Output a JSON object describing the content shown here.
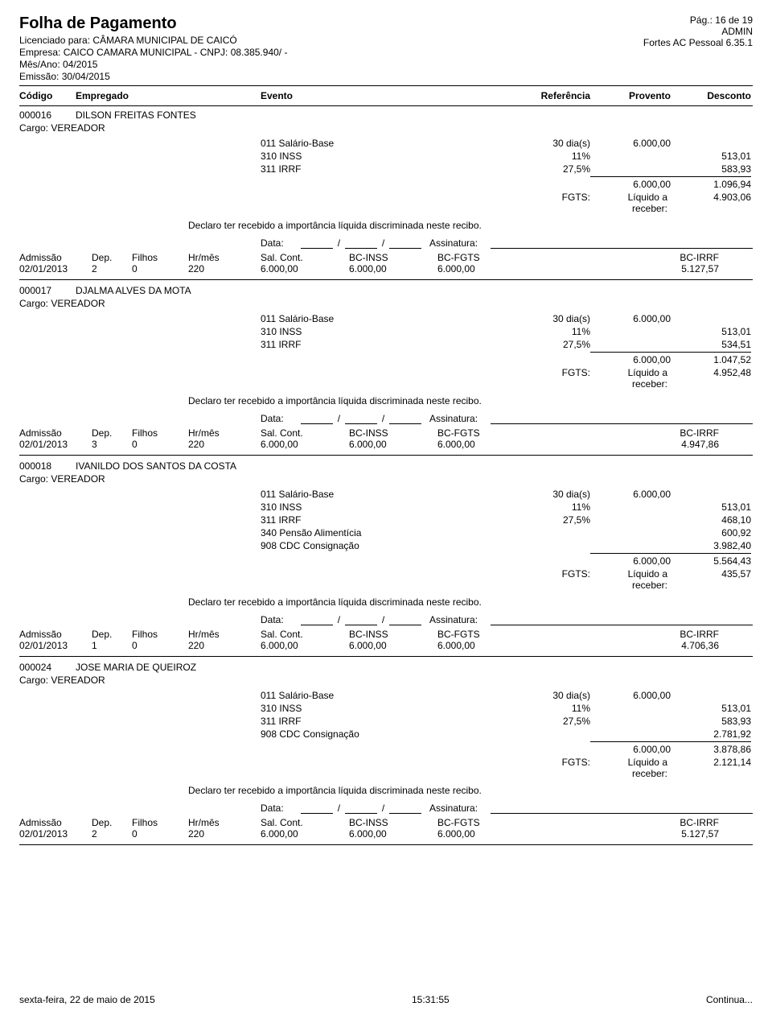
{
  "page": {
    "title": "Folha de Pagamento",
    "pag": "Pág.: 16 de 19",
    "licenciado_label": "Licenciado para:",
    "licenciado": "CÂMARA MUNICIPAL DE CAICÓ",
    "admin": "ADMIN",
    "empresa_label": "Empresa:",
    "empresa": "CAICO CAMARA MUNICIPAL - CNPJ: 08.385.940/    -",
    "software": "Fortes AC Pessoal 6.35.1",
    "mesano_label": "Mês/Ano:",
    "mesano": "04/2015",
    "emissao_label": "Emissão:",
    "emissao": "30/04/2015"
  },
  "cols": {
    "codigo": "Código",
    "empregado": "Empregado",
    "evento": "Evento",
    "referencia": "Referência",
    "provento": "Provento",
    "desconto": "Desconto"
  },
  "labels": {
    "cargo": "Cargo:",
    "fgts": "FGTS:",
    "liquido": "Líquido a receber:",
    "declaro": "Declaro ter recebido a importância líquida discriminada neste recibo.",
    "data": "Data:",
    "assinatura": "Assinatura:",
    "admissao": "Admissão",
    "dep": "Dep.",
    "filhos": "Filhos",
    "hrmes": "Hr/mês",
    "salcont": "Sal. Cont.",
    "bcinss": "BC-INSS",
    "bcfgts": "BC-FGTS",
    "bcirrf": "BC-IRRF"
  },
  "employees": [
    {
      "code": "000016",
      "name": "DILSON FREITAS FONTES",
      "cargo": "VEREADOR",
      "events": [
        {
          "code": "011",
          "name": "Salário-Base",
          "ref": "30 dia(s)",
          "prov": "6.000,00",
          "desc": ""
        },
        {
          "code": "310",
          "name": "INSS",
          "ref": "11%",
          "prov": "",
          "desc": "513,01"
        },
        {
          "code": "311",
          "name": "IRRF",
          "ref": "27,5%",
          "prov": "",
          "desc": "583,93"
        }
      ],
      "total_prov": "6.000,00",
      "total_desc": "1.096,94",
      "fgts": "",
      "liquido": "4.903,06",
      "footer": {
        "admissao": "02/01/2013",
        "dep": "2",
        "filhos": "0",
        "hrmes": "220",
        "salcont": "6.000,00",
        "bcinss": "6.000,00",
        "bcfgts": "6.000,00",
        "bcirrf": "5.127,57"
      }
    },
    {
      "code": "000017",
      "name": "DJALMA ALVES DA MOTA",
      "cargo": "VEREADOR",
      "events": [
        {
          "code": "011",
          "name": "Salário-Base",
          "ref": "30 dia(s)",
          "prov": "6.000,00",
          "desc": ""
        },
        {
          "code": "310",
          "name": "INSS",
          "ref": "11%",
          "prov": "",
          "desc": "513,01"
        },
        {
          "code": "311",
          "name": "IRRF",
          "ref": "27,5%",
          "prov": "",
          "desc": "534,51"
        }
      ],
      "total_prov": "6.000,00",
      "total_desc": "1.047,52",
      "fgts": "",
      "liquido": "4.952,48",
      "footer": {
        "admissao": "02/01/2013",
        "dep": "3",
        "filhos": "0",
        "hrmes": "220",
        "salcont": "6.000,00",
        "bcinss": "6.000,00",
        "bcfgts": "6.000,00",
        "bcirrf": "4.947,86"
      }
    },
    {
      "code": "000018",
      "name": "IVANILDO DOS SANTOS DA COSTA",
      "cargo": "VEREADOR",
      "events": [
        {
          "code": "011",
          "name": "Salário-Base",
          "ref": "30 dia(s)",
          "prov": "6.000,00",
          "desc": ""
        },
        {
          "code": "310",
          "name": "INSS",
          "ref": "11%",
          "prov": "",
          "desc": "513,01"
        },
        {
          "code": "311",
          "name": "IRRF",
          "ref": "27,5%",
          "prov": "",
          "desc": "468,10"
        },
        {
          "code": "340",
          "name": "Pensão Alimentícia",
          "ref": "",
          "prov": "",
          "desc": "600,92"
        },
        {
          "code": "908",
          "name": "CDC Consignação",
          "ref": "",
          "prov": "",
          "desc": "3.982,40"
        }
      ],
      "total_prov": "6.000,00",
      "total_desc": "5.564,43",
      "fgts": "",
      "liquido": "435,57",
      "footer": {
        "admissao": "02/01/2013",
        "dep": "1",
        "filhos": "0",
        "hrmes": "220",
        "salcont": "6.000,00",
        "bcinss": "6.000,00",
        "bcfgts": "6.000,00",
        "bcirrf": "4.706,36"
      }
    },
    {
      "code": "000024",
      "name": "JOSE MARIA DE QUEIROZ",
      "cargo": "VEREADOR",
      "events": [
        {
          "code": "011",
          "name": "Salário-Base",
          "ref": "30 dia(s)",
          "prov": "6.000,00",
          "desc": ""
        },
        {
          "code": "310",
          "name": "INSS",
          "ref": "11%",
          "prov": "",
          "desc": "513,01"
        },
        {
          "code": "311",
          "name": "IRRF",
          "ref": "27,5%",
          "prov": "",
          "desc": "583,93"
        },
        {
          "code": "908",
          "name": "CDC Consignação",
          "ref": "",
          "prov": "",
          "desc": "2.781,92"
        }
      ],
      "total_prov": "6.000,00",
      "total_desc": "3.878,86",
      "fgts": "",
      "liquido": "2.121,14",
      "footer": {
        "admissao": "02/01/2013",
        "dep": "2",
        "filhos": "0",
        "hrmes": "220",
        "salcont": "6.000,00",
        "bcinss": "6.000,00",
        "bcfgts": "6.000,00",
        "bcirrf": "5.127,57"
      }
    }
  ],
  "footer": {
    "date": "sexta-feira, 22 de maio de 2015",
    "time": "15:31:55",
    "continua": "Continua..."
  }
}
